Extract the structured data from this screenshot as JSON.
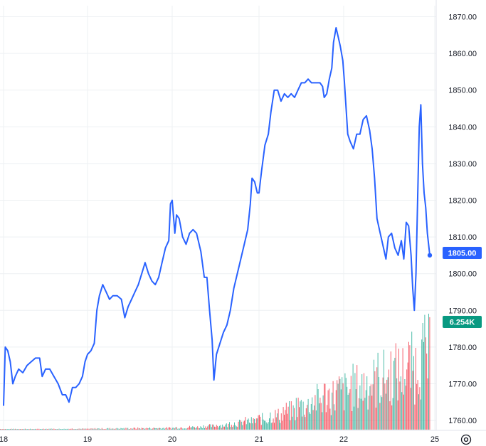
{
  "chart_data": {
    "type": "line",
    "title": "",
    "xlabel": "",
    "ylabel": "",
    "x_ticks": [
      "18",
      "19",
      "20",
      "21",
      "22",
      "25"
    ],
    "y_ticks": [
      1760,
      1770,
      1780,
      1790,
      1800,
      1810,
      1820,
      1830,
      1840,
      1850,
      1860,
      1870
    ],
    "y_tick_labels": [
      "1760.00",
      "1770.00",
      "1780.00",
      "1790.00",
      "1800.00",
      "1810.00",
      "1820.00",
      "1830.00",
      "1840.00",
      "1850.00",
      "1860.00",
      "1870.00"
    ],
    "ylim": [
      1757.5,
      1873
    ],
    "grid": true,
    "price_series": {
      "color": "#2962ff",
      "points": [
        [
          18.0,
          1764
        ],
        [
          18.02,
          1780
        ],
        [
          18.05,
          1779
        ],
        [
          18.08,
          1776
        ],
        [
          18.11,
          1770
        ],
        [
          18.14,
          1772
        ],
        [
          18.18,
          1774
        ],
        [
          18.23,
          1773
        ],
        [
          18.28,
          1775
        ],
        [
          18.33,
          1776
        ],
        [
          18.38,
          1777
        ],
        [
          18.43,
          1777
        ],
        [
          18.46,
          1772
        ],
        [
          18.5,
          1774
        ],
        [
          18.55,
          1774
        ],
        [
          18.6,
          1772
        ],
        [
          18.65,
          1770
        ],
        [
          18.7,
          1767
        ],
        [
          18.74,
          1767
        ],
        [
          18.78,
          1765
        ],
        [
          18.82,
          1769
        ],
        [
          18.86,
          1769
        ],
        [
          18.9,
          1770
        ],
        [
          18.94,
          1772
        ],
        [
          18.97,
          1776
        ],
        [
          19.0,
          1778
        ],
        [
          19.04,
          1779
        ],
        [
          19.08,
          1781
        ],
        [
          19.11,
          1790
        ],
        [
          19.14,
          1794
        ],
        [
          19.18,
          1797
        ],
        [
          19.22,
          1795
        ],
        [
          19.26,
          1793
        ],
        [
          19.3,
          1794
        ],
        [
          19.35,
          1794
        ],
        [
          19.4,
          1793
        ],
        [
          19.44,
          1788
        ],
        [
          19.48,
          1791
        ],
        [
          19.52,
          1793
        ],
        [
          19.56,
          1795
        ],
        [
          19.6,
          1797
        ],
        [
          19.64,
          1800
        ],
        [
          19.68,
          1803
        ],
        [
          19.72,
          1800
        ],
        [
          19.76,
          1798
        ],
        [
          19.8,
          1797
        ],
        [
          19.84,
          1799
        ],
        [
          19.88,
          1803
        ],
        [
          19.92,
          1807
        ],
        [
          19.96,
          1809
        ],
        [
          19.98,
          1819
        ],
        [
          20.0,
          1820
        ],
        [
          20.03,
          1811
        ],
        [
          20.05,
          1816
        ],
        [
          20.08,
          1815
        ],
        [
          20.12,
          1810
        ],
        [
          20.16,
          1808
        ],
        [
          20.2,
          1811
        ],
        [
          20.24,
          1812
        ],
        [
          20.28,
          1811
        ],
        [
          20.33,
          1806
        ],
        [
          20.37,
          1799
        ],
        [
          20.4,
          1799
        ],
        [
          20.43,
          1790
        ],
        [
          20.46,
          1782
        ],
        [
          20.48,
          1771
        ],
        [
          20.51,
          1778
        ],
        [
          20.55,
          1781
        ],
        [
          20.59,
          1784
        ],
        [
          20.63,
          1786
        ],
        [
          20.67,
          1790
        ],
        [
          20.71,
          1796
        ],
        [
          20.75,
          1800
        ],
        [
          20.79,
          1804
        ],
        [
          20.83,
          1808
        ],
        [
          20.87,
          1812
        ],
        [
          20.9,
          1819
        ],
        [
          20.92,
          1826
        ],
        [
          20.95,
          1825
        ],
        [
          20.98,
          1822
        ],
        [
          21.0,
          1822
        ],
        [
          21.03,
          1828
        ],
        [
          21.07,
          1835
        ],
        [
          21.11,
          1838
        ],
        [
          21.14,
          1844
        ],
        [
          21.18,
          1850
        ],
        [
          21.22,
          1850
        ],
        [
          21.26,
          1847
        ],
        [
          21.3,
          1849
        ],
        [
          21.34,
          1848
        ],
        [
          21.38,
          1849
        ],
        [
          21.42,
          1848
        ],
        [
          21.46,
          1850
        ],
        [
          21.5,
          1852
        ],
        [
          21.54,
          1852
        ],
        [
          21.58,
          1853
        ],
        [
          21.62,
          1852
        ],
        [
          21.65,
          1852
        ],
        [
          21.68,
          1852
        ],
        [
          21.72,
          1852
        ],
        [
          21.75,
          1851
        ],
        [
          21.77,
          1848
        ],
        [
          21.8,
          1849
        ],
        [
          21.83,
          1853
        ],
        [
          21.86,
          1856
        ],
        [
          21.88,
          1863
        ],
        [
          21.91,
          1867
        ],
        [
          21.93,
          1865
        ],
        [
          21.96,
          1862
        ],
        [
          21.99,
          1858
        ],
        [
          22.01,
          1852
        ],
        [
          22.03,
          1845
        ],
        [
          22.05,
          1838
        ],
        [
          22.08,
          1836
        ],
        [
          22.12,
          1834
        ],
        [
          22.16,
          1838
        ],
        [
          22.2,
          1838
        ],
        [
          22.24,
          1842
        ],
        [
          22.28,
          1843
        ],
        [
          22.32,
          1839
        ],
        [
          22.35,
          1834
        ],
        [
          22.38,
          1826
        ],
        [
          22.41,
          1815
        ],
        [
          22.44,
          1812
        ],
        [
          22.48,
          1808
        ],
        [
          22.52,
          1804
        ],
        [
          22.55,
          1810
        ],
        [
          22.59,
          1811
        ],
        [
          22.63,
          1807
        ],
        [
          22.67,
          1805
        ],
        [
          22.71,
          1809
        ],
        [
          22.74,
          1804
        ],
        [
          22.77,
          1814
        ],
        [
          22.8,
          1813
        ],
        [
          22.83,
          1805
        ],
        [
          22.85,
          1796
        ],
        [
          22.87,
          1790
        ],
        [
          22.89,
          1800
        ],
        [
          22.91,
          1820
        ],
        [
          22.93,
          1840
        ],
        [
          22.95,
          1846
        ],
        [
          22.97,
          1830
        ],
        [
          22.99,
          1822
        ],
        [
          23.01,
          1818
        ],
        [
          23.03,
          1811
        ],
        [
          23.06,
          1805
        ]
      ]
    },
    "volume_series": {
      "up_color": "#22ab94",
      "down_color": "#f23645",
      "max_label": "6.254K",
      "max_value": 6.254,
      "buckets": [
        0.05,
        0.06,
        0.05,
        0.07,
        0.06,
        0.08,
        0.07,
        0.09,
        0.1,
        0.11,
        0.12,
        0.13,
        0.14,
        0.18,
        0.22,
        0.3,
        0.38,
        0.55,
        0.7,
        0.9,
        1.2,
        1.55,
        2.0,
        2.5,
        2.9,
        3.2,
        3.6,
        4.0,
        4.4,
        4.8,
        5.3,
        6.254
      ]
    },
    "last_price_label": "1805.00",
    "last_price": 1805.0,
    "settings_icon": "gear-icon"
  }
}
